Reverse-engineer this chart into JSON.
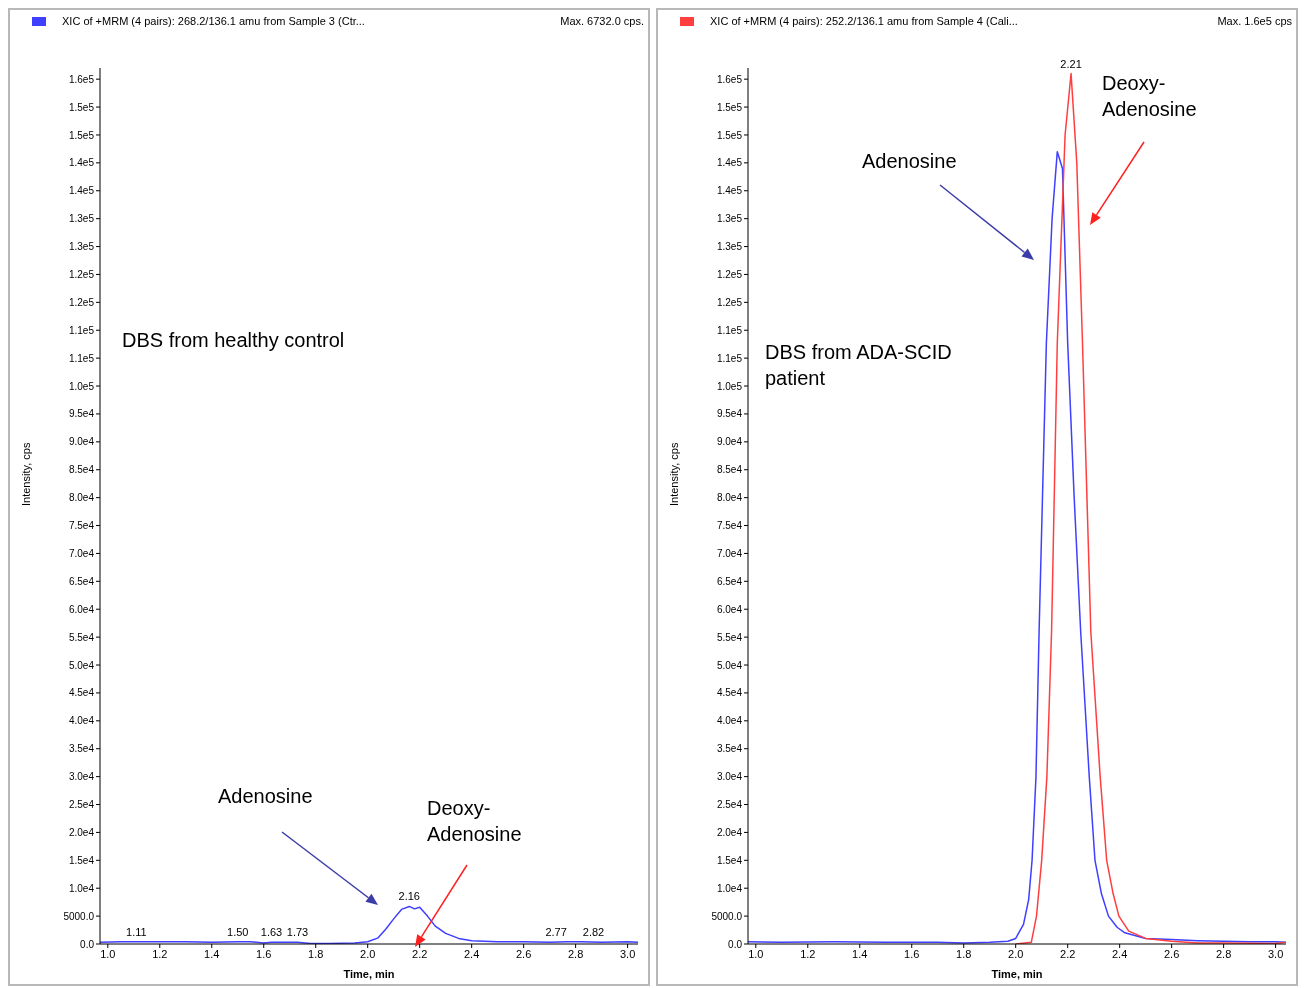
{
  "chart_data": [
    {
      "type": "line",
      "title": "XIC of +MRM (4 pairs): 268.2/136.1 amu from Sample 3 (Ctr...",
      "subtitle": "Max. 6732.0 cps.",
      "xlabel": "Time, min",
      "ylabel": "Intensity, cps",
      "series": [
        {
          "color": "#3f3fff",
          "x": [
            0.97,
            1.05,
            1.11,
            1.2,
            1.3,
            1.4,
            1.5,
            1.55,
            1.6,
            1.63,
            1.68,
            1.73,
            1.78,
            1.85,
            1.95,
            2.0,
            2.04,
            2.07,
            2.1,
            2.13,
            2.16,
            2.18,
            2.2,
            2.23,
            2.26,
            2.3,
            2.35,
            2.4,
            2.5,
            2.6,
            2.7,
            2.77,
            2.82,
            2.9,
            3.0,
            3.04
          ],
          "values": [
            300,
            400,
            400,
            400,
            400,
            300,
            400,
            400,
            200,
            300,
            300,
            300,
            100,
            100,
            200,
            400,
            1100,
            2700,
            4500,
            6200,
            6732,
            6300,
            6600,
            5000,
            3200,
            1900,
            1000,
            600,
            400,
            400,
            300,
            400,
            400,
            300,
            400,
            300
          ]
        }
      ],
      "xlim": [
        0.97,
        3.04
      ],
      "xticks": [
        {
          "value": 1,
          "label": "1.0"
        },
        1.2,
        1.4,
        1.6,
        1.8,
        {
          "value": 2,
          "label": "2.0"
        },
        2.2,
        2.4,
        2.6,
        2.8,
        {
          "value": 3,
          "label": "3.0"
        }
      ],
      "ylim": [
        0,
        157000
      ],
      "yticks": [
        {
          "value": 0,
          "label": "0.0"
        },
        {
          "value": 5000,
          "label": "5000.0"
        },
        {
          "value": 10000,
          "label": "1.0e4"
        },
        {
          "value": 15000,
          "label": "1.5e4"
        },
        {
          "value": 20000,
          "label": "2.0e4"
        },
        {
          "value": 25000,
          "label": "2.5e4"
        },
        {
          "value": 30000,
          "label": "3.0e4"
        },
        {
          "value": 35000,
          "label": "3.5e4"
        },
        {
          "value": 40000,
          "label": "4.0e4"
        },
        {
          "value": 45000,
          "label": "4.5e4"
        },
        {
          "value": 50000,
          "label": "5.0e4"
        },
        {
          "value": 55000,
          "label": "5.5e4"
        },
        {
          "value": 60000,
          "label": "6.0e4"
        },
        {
          "value": 65000,
          "label": "6.5e4"
        },
        {
          "value": 70000,
          "label": "7.0e4"
        },
        {
          "value": 75000,
          "label": "7.5e4"
        },
        {
          "value": 80000,
          "label": "8.0e4"
        },
        {
          "value": 85000,
          "label": "8.5e4"
        },
        {
          "value": 90000,
          "label": "9.0e4"
        },
        {
          "value": 95000,
          "label": "9.5e4"
        },
        {
          "value": 100000,
          "label": "1.0e5"
        },
        {
          "value": 105000,
          "label": "1.1e5"
        },
        {
          "value": 110000,
          "label": "1.1e5"
        },
        {
          "value": 115000,
          "label": "1.2e5"
        },
        {
          "value": 120000,
          "label": "1.2e5"
        },
        {
          "value": 125000,
          "label": "1.3e5"
        },
        {
          "value": 130000,
          "label": "1.3e5"
        },
        {
          "value": 135000,
          "label": "1.4e5"
        },
        {
          "value": 140000,
          "label": "1.4e5"
        },
        {
          "value": 145000,
          "label": "1.5e5"
        },
        {
          "value": 150000,
          "label": "1.5e5"
        },
        {
          "value": 155000,
          "label": "1.6e5"
        }
      ],
      "annotations": [
        "DBS from healthy control",
        "Adenosine",
        "Deoxy-\nAdenosine",
        {
          "text": "1.11",
          "x": 1.11,
          "y": 400
        },
        {
          "text": "1.50",
          "x": 1.5,
          "y": 400
        },
        {
          "text": "1.63",
          "x": 1.63,
          "y": 300
        },
        {
          "text": "1.73",
          "x": 1.73,
          "y": 300
        },
        {
          "text": "2.16",
          "x": 2.16,
          "y": 6732
        },
        {
          "text": "2.77",
          "x": 2.77,
          "y": 400
        },
        {
          "text": "2.82",
          "x": 2.82,
          "y": 400
        }
      ]
    },
    {
      "type": "line",
      "title": "XIC of +MRM (4 pairs): 252.2/136.1 amu from Sample 4 (Cali...",
      "subtitle": "Max. 1.6e5 cps",
      "xlabel": "Time, min",
      "ylabel": "Intensity, cps",
      "series": [
        {
          "color": "#3f3fff",
          "x": [
            0.97,
            1.1,
            1.3,
            1.5,
            1.7,
            1.8,
            1.9,
            1.97,
            2.0,
            2.03,
            2.05,
            2.063,
            2.078,
            2.09,
            2.118,
            2.14,
            2.16,
            2.18,
            2.2,
            2.225,
            2.25,
            2.283,
            2.305,
            2.33,
            2.357,
            2.39,
            2.42,
            2.5,
            2.6,
            2.7,
            2.8,
            2.9,
            3.0,
            3.04
          ],
          "values": [
            400,
            300,
            400,
            300,
            300,
            200,
            300,
            500,
            1000,
            3500,
            8000,
            15000,
            30000,
            56000,
            107700,
            130000,
            142000,
            139000,
            107700,
            80000,
            56000,
            30000,
            15000,
            9000,
            5000,
            3000,
            2000,
            1000,
            800,
            600,
            500,
            400,
            400,
            300
          ]
        },
        {
          "color": "#ff3f3f",
          "x": [
            2.0,
            2.06,
            2.08,
            2.1,
            2.12,
            2.138,
            2.16,
            2.19,
            2.213,
            2.235,
            2.257,
            2.289,
            2.325,
            2.35,
            2.375,
            2.397,
            2.435,
            2.5,
            2.6,
            2.7,
            2.8,
            3.0,
            3.04
          ],
          "values": [
            0,
            300,
            5000,
            15000,
            30000,
            56000,
            107700,
            145000,
            156000,
            140000,
            107700,
            56000,
            30000,
            15000,
            9000,
            5000,
            2300,
            1000,
            500,
            200,
            200,
            100,
            300
          ]
        }
      ],
      "xlim": [
        0.97,
        3.04
      ],
      "xticks": [
        {
          "value": 1,
          "label": "1.0"
        },
        1.2,
        1.4,
        1.6,
        1.8,
        {
          "value": 2,
          "label": "2.0"
        },
        2.2,
        2.4,
        2.6,
        2.8,
        {
          "value": 3,
          "label": "3.0"
        }
      ],
      "ylim": [
        0,
        157000
      ],
      "yticks": [
        {
          "value": 0,
          "label": "0.0"
        },
        {
          "value": 5000,
          "label": "5000.0"
        },
        {
          "value": 10000,
          "label": "1.0e4"
        },
        {
          "value": 15000,
          "label": "1.5e4"
        },
        {
          "value": 20000,
          "label": "2.0e4"
        },
        {
          "value": 25000,
          "label": "2.5e4"
        },
        {
          "value": 30000,
          "label": "3.0e4"
        },
        {
          "value": 35000,
          "label": "3.5e4"
        },
        {
          "value": 40000,
          "label": "4.0e4"
        },
        {
          "value": 45000,
          "label": "4.5e4"
        },
        {
          "value": 50000,
          "label": "5.0e4"
        },
        {
          "value": 55000,
          "label": "5.5e4"
        },
        {
          "value": 60000,
          "label": "6.0e4"
        },
        {
          "value": 65000,
          "label": "6.5e4"
        },
        {
          "value": 70000,
          "label": "7.0e4"
        },
        {
          "value": 75000,
          "label": "7.5e4"
        },
        {
          "value": 80000,
          "label": "8.0e4"
        },
        {
          "value": 85000,
          "label": "8.5e4"
        },
        {
          "value": 90000,
          "label": "9.0e4"
        },
        {
          "value": 95000,
          "label": "9.5e4"
        },
        {
          "value": 100000,
          "label": "1.0e5"
        },
        {
          "value": 105000,
          "label": "1.1e5"
        },
        {
          "value": 110000,
          "label": "1.1e5"
        },
        {
          "value": 115000,
          "label": "1.2e5"
        },
        {
          "value": 120000,
          "label": "1.2e5"
        },
        {
          "value": 125000,
          "label": "1.3e5"
        },
        {
          "value": 130000,
          "label": "1.3e5"
        },
        {
          "value": 135000,
          "label": "1.4e5"
        },
        {
          "value": 140000,
          "label": "1.4e5"
        },
        {
          "value": 145000,
          "label": "1.5e5"
        },
        {
          "value": 150000,
          "label": "1.5e5"
        },
        {
          "value": 155000,
          "label": "1.6e5"
        }
      ],
      "annotations": [
        "DBS from ADA-SCID\npatient",
        "Adenosine",
        "Deoxy-\nAdenosine",
        {
          "text": "2.21",
          "x": 2.213,
          "y": 156000
        }
      ]
    }
  ]
}
